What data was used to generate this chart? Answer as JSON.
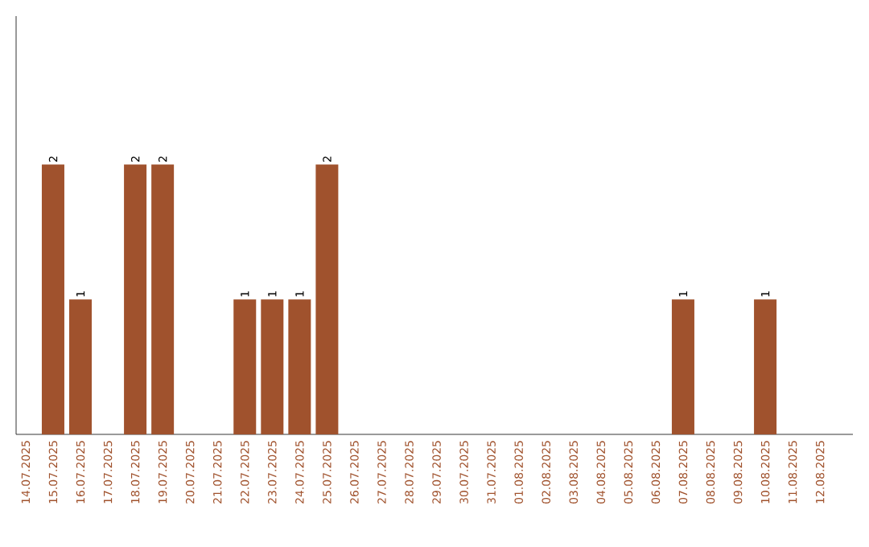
{
  "chart_data": {
    "type": "bar",
    "categories": [
      "14.07.2025",
      "15.07.2025",
      "16.07.2025",
      "17.07.2025",
      "18.07.2025",
      "19.07.2025",
      "20.07.2025",
      "21.07.2025",
      "22.07.2025",
      "23.07.2025",
      "24.07.2025",
      "25.07.2025",
      "26.07.2025",
      "27.07.2025",
      "28.07.2025",
      "29.07.2025",
      "30.07.2025",
      "31.07.2025",
      "01.08.2025",
      "02.08.2025",
      "03.08.2025",
      "04.08.2025",
      "05.08.2025",
      "06.08.2025",
      "07.08.2025",
      "08.08.2025",
      "09.08.2025",
      "10.08.2025",
      "11.08.2025",
      "12.08.2025"
    ],
    "values": [
      0,
      2,
      1,
      0,
      2,
      2,
      0,
      0,
      1,
      1,
      1,
      2,
      0,
      0,
      0,
      0,
      0,
      0,
      0,
      0,
      0,
      0,
      0,
      0,
      1,
      0,
      0,
      1,
      0,
      0
    ],
    "value_labels": [
      null,
      "2",
      "1",
      null,
      "2",
      "2",
      null,
      null,
      "1",
      "1",
      "1",
      "2",
      null,
      null,
      null,
      null,
      null,
      null,
      null,
      null,
      null,
      null,
      null,
      null,
      "1",
      null,
      null,
      "1",
      null,
      null
    ],
    "color": "#a0522d",
    "ylim": [
      0,
      3.1
    ]
  }
}
